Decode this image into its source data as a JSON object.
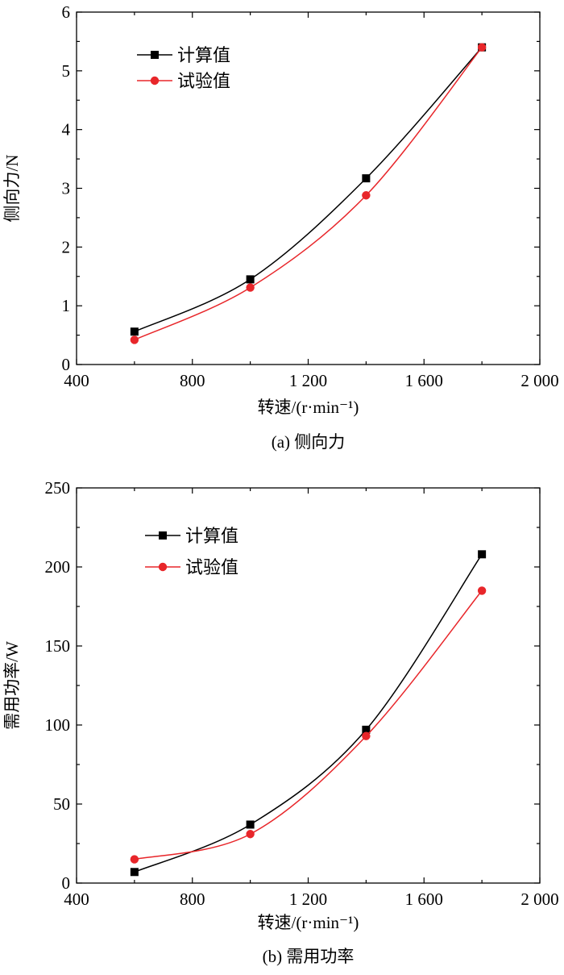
{
  "chart_data": [
    {
      "type": "line",
      "id": "a",
      "caption": "(a) 侧向力",
      "xlabel": "转速/(r·min⁻¹)",
      "ylabel": "侧向力/N",
      "xlim": [
        400,
        2000
      ],
      "ylim": [
        0,
        6
      ],
      "xticks": [
        400,
        800,
        1200,
        1600,
        2000
      ],
      "xtick_labels": [
        "400",
        "800",
        "1 200",
        "1 600",
        "2 000"
      ],
      "yticks": [
        0,
        1,
        2,
        3,
        4,
        5,
        6
      ],
      "ytick_labels": [
        "0",
        "1",
        "2",
        "3",
        "4",
        "5",
        "6"
      ],
      "legend_position": "top-left",
      "x": [
        600,
        1000,
        1400,
        1800
      ],
      "series": [
        {
          "name": "计算值",
          "color": "#000000",
          "marker": "square",
          "values": [
            0.56,
            1.45,
            3.17,
            5.4
          ]
        },
        {
          "name": "试验值",
          "color": "#e8262a",
          "marker": "circle",
          "values": [
            0.42,
            1.31,
            2.88,
            5.4
          ]
        }
      ]
    },
    {
      "type": "line",
      "id": "b",
      "caption": "(b) 需用功率",
      "xlabel": "转速/(r·min⁻¹)",
      "ylabel": "需用功率/W",
      "xlim": [
        400,
        2000
      ],
      "ylim": [
        0,
        250
      ],
      "xticks": [
        400,
        800,
        1200,
        1600,
        2000
      ],
      "xtick_labels": [
        "400",
        "800",
        "1 200",
        "1 600",
        "2 000"
      ],
      "yticks": [
        0,
        50,
        100,
        150,
        200,
        250
      ],
      "ytick_labels": [
        "0",
        "50",
        "100",
        "150",
        "200",
        "250"
      ],
      "legend_position": "top-left",
      "x": [
        600,
        1000,
        1400,
        1800
      ],
      "series": [
        {
          "name": "计算值",
          "color": "#000000",
          "marker": "square",
          "values": [
            7,
            37,
            97,
            208
          ]
        },
        {
          "name": "试验值",
          "color": "#e8262a",
          "marker": "circle",
          "values": [
            15,
            31,
            93,
            185
          ]
        }
      ]
    }
  ]
}
